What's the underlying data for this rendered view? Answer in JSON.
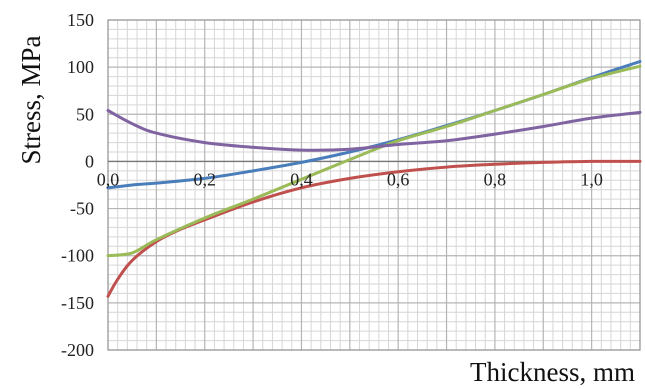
{
  "chart_data": {
    "type": "line",
    "title": "",
    "xlabel": "Thickness, mm",
    "ylabel": "Stress, MPa",
    "xlim": [
      0.0,
      1.1
    ],
    "ylim": [
      -200,
      150
    ],
    "y_ticks": [
      "150",
      "100",
      "50",
      "0",
      "-50",
      "-100",
      "-150",
      "-200"
    ],
    "x_ticks": [
      "0,0",
      "0,2",
      "0,4",
      "0,6",
      "0,8",
      "1,0"
    ],
    "grid": true,
    "legend": "none",
    "series": [
      {
        "color": "#4a7ebb",
        "x": [
          0.0,
          0.05,
          0.1,
          0.2,
          0.3,
          0.4,
          0.5,
          0.6,
          0.7,
          0.8,
          0.9,
          1.0,
          1.1
        ],
        "y": [
          -28,
          -25,
          -23,
          -18,
          -10,
          -1,
          10,
          23,
          38,
          54,
          71,
          89,
          106
        ]
      },
      {
        "color": "#c0504d",
        "x": [
          0.0,
          0.02,
          0.05,
          0.1,
          0.15,
          0.2,
          0.3,
          0.4,
          0.5,
          0.6,
          0.7,
          0.8,
          0.9,
          1.0,
          1.1
        ],
        "y": [
          -143,
          -125,
          -105,
          -85,
          -72,
          -62,
          -43,
          -28,
          -18,
          -11,
          -6,
          -3,
          -1,
          0,
          0
        ]
      },
      {
        "color": "#9bbb59",
        "x": [
          0.0,
          0.05,
          0.1,
          0.2,
          0.3,
          0.4,
          0.5,
          0.6,
          0.7,
          0.8,
          0.9,
          1.0,
          1.1
        ],
        "y": [
          -100,
          -97,
          -83,
          -60,
          -40,
          -19,
          2,
          22,
          37,
          54,
          71,
          88,
          101
        ]
      },
      {
        "color": "#8064a2",
        "x": [
          0.0,
          0.05,
          0.1,
          0.2,
          0.3,
          0.4,
          0.5,
          0.6,
          0.7,
          0.8,
          0.9,
          1.0,
          1.1
        ],
        "y": [
          54,
          40,
          30,
          20,
          15,
          12,
          13,
          18,
          22,
          29,
          37,
          46,
          52
        ]
      }
    ]
  }
}
